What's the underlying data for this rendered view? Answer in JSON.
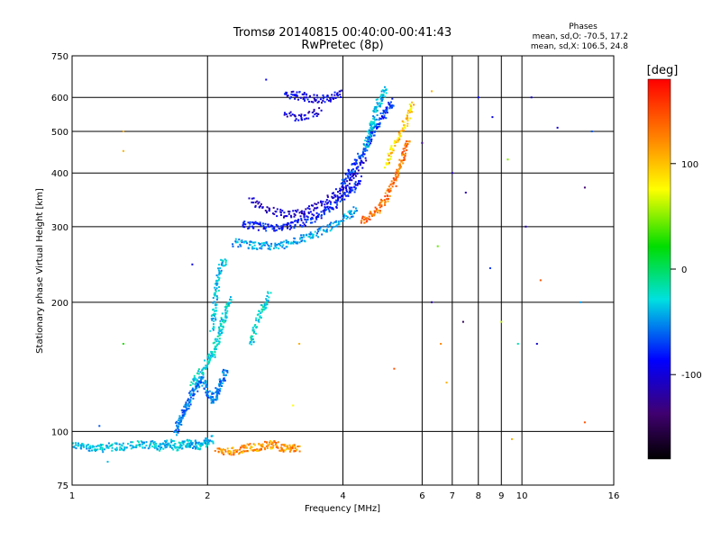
{
  "chart_data": {
    "type": "scatter",
    "title": "Tromsø 20140815 00:40:00-00:41:43",
    "subtitle": "RwPretec (8p)",
    "xlabel": "Frequency [MHz]",
    "ylabel": "Stationary phase Virtual Height [km]",
    "x_scale": "log",
    "y_scale": "log",
    "xlim": [
      1,
      16
    ],
    "ylim": [
      75,
      750
    ],
    "x_ticks": [
      1,
      2,
      4,
      6,
      8,
      10,
      16
    ],
    "x_minor_ticks": [
      7,
      9
    ],
    "y_ticks": [
      75,
      100,
      200,
      300,
      400,
      500,
      600,
      750
    ],
    "grid": true,
    "phases_box": {
      "title": "Phases",
      "line1": "mean, sd,O: -70.5, 17.2",
      "line2": "mean, sd,X: 106.5, 24.8"
    },
    "colorbar": {
      "label": "[deg]",
      "range": [
        -180,
        180
      ],
      "ticks": [
        100,
        0,
        -100
      ]
    },
    "traces": [
      {
        "x": [
          1.0,
          1.05,
          1.1,
          1.15,
          1.2,
          1.3,
          1.4,
          1.5,
          1.55,
          1.6,
          1.65,
          1.7,
          1.75,
          1.8,
          1.85,
          1.9,
          1.95,
          2.0,
          2.05
        ],
        "y": [
          93,
          92,
          92,
          91,
          92,
          92,
          93,
          93,
          92,
          93,
          94,
          92,
          93,
          93,
          94,
          92,
          93,
          95,
          96
        ],
        "phase": -40,
        "n": 4
      },
      {
        "x": [
          1.7,
          1.75,
          1.8,
          1.85,
          1.9,
          1.95,
          2.0,
          2.05,
          2.1,
          2.15,
          2.2
        ],
        "y": [
          100,
          108,
          115,
          122,
          128,
          132,
          125,
          118,
          122,
          130,
          140
        ],
        "phase": -60,
        "n": 5
      },
      {
        "x": [
          1.85,
          1.95,
          2.0,
          2.05,
          2.1,
          2.15,
          2.2,
          2.25
        ],
        "y": [
          130,
          138,
          146,
          150,
          162,
          176,
          190,
          205
        ],
        "phase": -30,
        "n": 4
      },
      {
        "x": [
          2.05,
          2.08,
          2.1,
          2.12,
          2.15,
          2.2
        ],
        "y": [
          175,
          195,
          220,
          235,
          245,
          250
        ],
        "phase": -40,
        "n": 3
      },
      {
        "x": [
          2.5,
          2.55,
          2.6,
          2.65,
          2.7,
          2.75
        ],
        "y": [
          160,
          175,
          185,
          195,
          200,
          210
        ],
        "phase": -30,
        "n": 3
      },
      {
        "x": [
          2.1,
          2.2,
          2.3,
          2.4,
          2.5,
          2.6,
          2.7,
          2.8,
          2.9,
          3.0,
          3.1,
          3.2
        ],
        "y": [
          91,
          90,
          90,
          91,
          92,
          92,
          93,
          93,
          92,
          91,
          92,
          91
        ],
        "phase": 130,
        "n": 4
      },
      {
        "x": [
          2.3,
          2.5,
          2.7,
          2.9,
          3.1,
          3.3,
          3.5,
          3.7,
          3.9,
          4.1,
          4.3
        ],
        "y": [
          275,
          272,
          270,
          272,
          276,
          282,
          290,
          298,
          306,
          318,
          332
        ],
        "phase": -50,
        "n": 4
      },
      {
        "x": [
          2.4,
          2.6,
          2.8,
          3.0,
          3.2,
          3.4,
          3.6,
          3.8,
          4.0,
          4.2,
          4.4
        ],
        "y": [
          305,
          300,
          298,
          300,
          305,
          312,
          322,
          335,
          350,
          368,
          390
        ],
        "phase": -90,
        "n": 4
      },
      {
        "x": [
          2.5,
          2.7,
          2.9,
          3.1,
          3.3,
          3.5,
          3.7,
          3.9,
          4.1,
          4.3,
          4.5
        ],
        "y": [
          345,
          330,
          322,
          320,
          325,
          335,
          345,
          360,
          380,
          405,
          430
        ],
        "phase": -110,
        "n": 3
      },
      {
        "x": [
          4.0,
          4.2,
          4.4,
          4.6,
          4.8,
          5.0,
          5.2
        ],
        "y": [
          380,
          410,
          440,
          480,
          520,
          560,
          590
        ],
        "phase": -80,
        "n": 4
      },
      {
        "x": [
          4.5,
          4.6,
          4.7,
          4.8,
          4.9,
          5.0
        ],
        "y": [
          460,
          500,
          540,
          580,
          610,
          630
        ],
        "phase": -40,
        "n": 4
      },
      {
        "x": [
          3.0,
          3.2,
          3.4,
          3.6,
          3.8,
          4.0
        ],
        "y": [
          610,
          605,
          598,
          595,
          600,
          615
        ],
        "phase": -100,
        "n": 4
      },
      {
        "x": [
          3.0,
          3.2,
          3.4,
          3.6
        ],
        "y": [
          545,
          540,
          548,
          560
        ],
        "phase": -110,
        "n": 3
      },
      {
        "x": [
          4.4,
          4.6,
          4.8,
          5.0,
          5.2,
          5.4,
          5.6
        ],
        "y": [
          310,
          318,
          330,
          350,
          380,
          430,
          480
        ],
        "phase": 140,
        "n": 4
      },
      {
        "x": [
          5.0,
          5.2,
          5.4,
          5.6,
          5.7
        ],
        "y": [
          420,
          460,
          500,
          545,
          590
        ],
        "phase": 110,
        "n": 3
      }
    ],
    "scatter_points": [
      {
        "x": 1.3,
        "y": 500,
        "phase": 120
      },
      {
        "x": 1.3,
        "y": 450,
        "phase": 120
      },
      {
        "x": 1.3,
        "y": 160,
        "phase": 30
      },
      {
        "x": 1.85,
        "y": 245,
        "phase": -100
      },
      {
        "x": 2.7,
        "y": 660,
        "phase": -100
      },
      {
        "x": 3.2,
        "y": 160,
        "phase": 120
      },
      {
        "x": 3.1,
        "y": 115,
        "phase": 100
      },
      {
        "x": 6.3,
        "y": 620,
        "phase": 120
      },
      {
        "x": 6.5,
        "y": 270,
        "phase": 50
      },
      {
        "x": 6.3,
        "y": 200,
        "phase": -120
      },
      {
        "x": 6.6,
        "y": 160,
        "phase": 130
      },
      {
        "x": 6.8,
        "y": 130,
        "phase": 120
      },
      {
        "x": 7.5,
        "y": 360,
        "phase": -120
      },
      {
        "x": 7.4,
        "y": 180,
        "phase": -150
      },
      {
        "x": 8.0,
        "y": 600,
        "phase": -100
      },
      {
        "x": 8.5,
        "y": 240,
        "phase": -80
      },
      {
        "x": 9.0,
        "y": 180,
        "phase": 80
      },
      {
        "x": 9.3,
        "y": 430,
        "phase": 60
      },
      {
        "x": 9.8,
        "y": 160,
        "phase": -20
      },
      {
        "x": 10.5,
        "y": 600,
        "phase": -110
      },
      {
        "x": 10.2,
        "y": 300,
        "phase": -120
      },
      {
        "x": 11.0,
        "y": 225,
        "phase": 150
      },
      {
        "x": 10.8,
        "y": 160,
        "phase": -110
      },
      {
        "x": 13.8,
        "y": 370,
        "phase": -140
      },
      {
        "x": 13.8,
        "y": 105,
        "phase": 150
      },
      {
        "x": 14.3,
        "y": 500,
        "phase": -70
      },
      {
        "x": 13.5,
        "y": 200,
        "phase": -50
      },
      {
        "x": 9.5,
        "y": 96,
        "phase": 120
      },
      {
        "x": 12.0,
        "y": 510,
        "phase": -110
      },
      {
        "x": 1.15,
        "y": 103,
        "phase": -70
      },
      {
        "x": 1.2,
        "y": 85,
        "phase": -40
      },
      {
        "x": 5.2,
        "y": 140,
        "phase": 150
      },
      {
        "x": 6.0,
        "y": 470,
        "phase": -130
      },
      {
        "x": 7.0,
        "y": 400,
        "phase": -120
      },
      {
        "x": 8.6,
        "y": 540,
        "phase": -100
      }
    ]
  }
}
